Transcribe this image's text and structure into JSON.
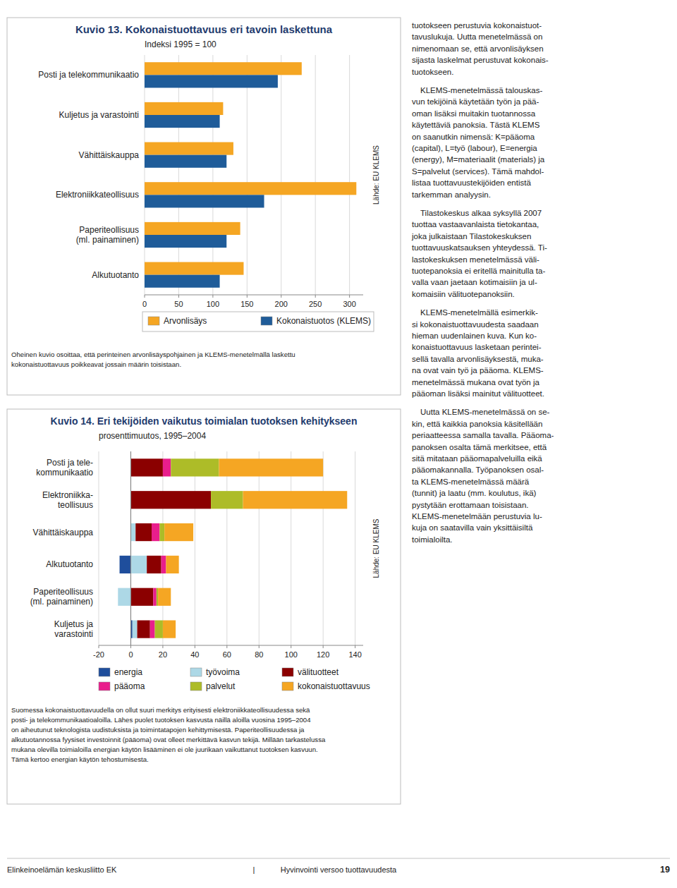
{
  "chart_data": [
    {
      "type": "bar",
      "orientation": "horizontal",
      "title": "Kuvio 13. Kokonaistuottavuus eri tavoin laskettuna",
      "subtitle": "Indeksi 1995 = 100",
      "categories": [
        "Posti ja telekommunikaatio",
        "Kuljetus ja varastointi",
        "Vähittäiskauppa",
        "Elektroniikkateollisuus",
        "Paperiteollisuus\n(ml. painaminen)",
        "Alkutuotanto"
      ],
      "series": [
        {
          "name": "Arvonlisäys",
          "color": "#F5A623",
          "values": [
            230,
            115,
            130,
            310,
            140,
            145
          ]
        },
        {
          "name": "Kokonaistuotos (KLEMS)",
          "color": "#1F5C99",
          "values": [
            195,
            110,
            120,
            175,
            120,
            110
          ]
        }
      ],
      "xlim": [
        0,
        320
      ],
      "xticks": [
        0,
        50,
        100,
        150,
        200,
        250,
        300
      ],
      "grid": true,
      "legend": "bottom",
      "annotations": [
        "Lähde: EU KLEMS",
        "Oheinen kuvio osoittaa, että perinteinen arvonlisäyspohjainen ja KLEMS-menetelmällä laskettu\nkokonaistuottavuus poikkeavat jossain määrin toisistaan."
      ]
    },
    {
      "type": "bar",
      "orientation": "horizontal",
      "stacked": true,
      "title": "Kuvio 14. Eri tekijöiden vaikutus toimialan tuotoksen kehitykseen",
      "subtitle": "prosenttimuutos, 1995–2004",
      "categories": [
        "Kuljetus ja\nvarastointi",
        "Paperiteollisuus\n(ml. painaminen)",
        "Alkutuotanto",
        "Vähittäiskauppa",
        "Elektroniikka-\nteollisuus",
        "Posti ja tele-\nkommunikaatio"
      ],
      "series": [
        {
          "name": "energia",
          "color": "#1F4E9C",
          "values": [
            1,
            0,
            -7,
            0,
            0,
            0
          ]
        },
        {
          "name": "työvoima",
          "color": "#ADD8E6",
          "values": [
            3,
            -8,
            10,
            3,
            0,
            0
          ]
        },
        {
          "name": "välituotteet",
          "color": "#8B0000",
          "values": [
            8,
            14,
            9,
            10,
            50,
            20
          ]
        },
        {
          "name": "pääoma",
          "color": "#E91E8C",
          "values": [
            3,
            2,
            3,
            5,
            0,
            5
          ]
        },
        {
          "name": "palvelut",
          "color": "#ADBC28",
          "values": [
            5,
            1,
            0,
            3,
            20,
            30
          ]
        },
        {
          "name": "kokonaistuottavuus",
          "color": "#F5A623",
          "values": [
            8,
            8,
            8,
            18,
            65,
            65
          ]
        }
      ],
      "xlim": [
        -20,
        145
      ],
      "xticks": [
        -20,
        0,
        20,
        40,
        60,
        80,
        100,
        120,
        140
      ],
      "grid": true,
      "legend": "bottom",
      "annotations": [
        "Lähde: EU KLEMS",
        "Suomessa kokonaistuottavuudella on ollut suuri merkitys erityisesti elektroniikkateollisuudessa sekä\nposti- ja telekommunikaatioaloilla. Lähes puolet tuotoksen kasvusta näillä aloilla vuosina 1995–2004\non aiheutunut teknologista uudistuksista ja toimintatapojen kehittymisestä. Paperiteollisuudessa ja\nalkutuotannossa fyysiset investoinnit (pääoma) ovat olleet merkittävä kasvun tekijä. Millään tarkastelussa\nmukana olevilla toimialoilla energian käytön lisääminen ei ole juurikaan vaikuttanut tuotoksen kasvuun.\nTämä kertoo energian käytön tehostumisesta."
      ]
    }
  ],
  "paragraphs": [
    "tuotokseen perustuvia kokonaistuot-\ntavuslukuja. Uutta menetelmässä on\nnimenomaan se, että arvonlisäyksen\nsijasta laskelmat perustuvat kokonais-\ntuotokseen.",
    "KLEMS-menetelmässä talouskas-\nvun tekijöinä käytetään työn ja pää-\noman lisäksi muitakin tuotannossa\nkäytettäviä panoksia. Tästä KLEMS\non saanutkin nimensä: K=pääoma\n(capital), L=työ (labour), E=energia\n(energy), M=materiaalit (materials) ja\nS=palvelut (services). Tämä mahdol-\nlistaa tuottavuustekijöiden entistä\ntarkemman analyysin.",
    "Tilastokeskus alkaa syksyllä 2007\ntuottaa vastaavanlaista tietokantaa,\njoka julkaistaan Tilastokeskuksen\ntuottavuuskatsauksen yhteydessä. Ti-\nlastokeskuksen menetelmässä väli-\ntuotepanoksia ei eritellä mainitulla ta-\nvalla vaan jaetaan kotimaisiin ja ul-\nkomaisiin välituotepanoksiin.",
    "KLEMS-menetelmällä esimerkik-\nsi kokonaistuottavuudesta saadaan\nhieman uudenlainen kuva. Kun ko-\nkonaistuottavuus lasketaan perintei-\nsellä tavalla arvonlisäyksestä, muka-\nna ovat vain työ ja pääoma. KLEMS-\nmenetelmässä mukana ovat työn ja\npääoman lisäksi mainitut välituotteet.",
    "Uutta KLEMS-menetelmässä on se-\nkin, että kaikkia panoksia käsitellään\nperiaatteessa samalla tavalla. Pääoma-\npanoksen osalta tämä merkitsee, että\nsitä mitataan pääomapalveluilla eikä\npääomakannalla. Työpanoksen osal-\nta KLEMS-menetelmässä määrä\n(tunnit) ja laatu (mm. koulutus, ikä)\npystytään erottamaan toisistaan.\nKLEMS-menetelmään perustuvia lu-\nkuja on saatavilla vain yksittäisiltä\ntoimialoilta."
  ],
  "footer": [
    "Elinkeinoelämän keskusliitto EK",
    "|",
    "Hyvinvointi versoo tuottavuudesta",
    "19"
  ]
}
